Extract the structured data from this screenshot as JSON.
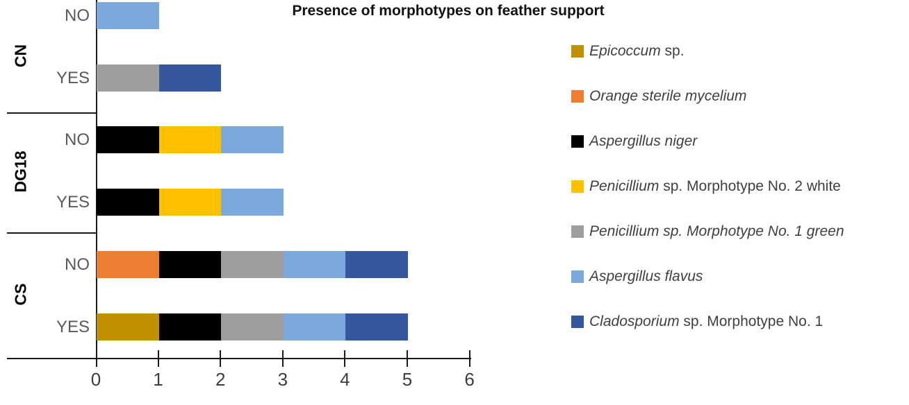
{
  "title": "Presence of morphotypes on feather support",
  "chart_data": {
    "type": "bar",
    "orientation": "horizontal",
    "stacked": true,
    "title": "Presence of morphotypes on feather support",
    "groups": [
      {
        "name": "CN",
        "rows": [
          "NO",
          "YES"
        ]
      },
      {
        "name": "DG18",
        "rows": [
          "NO",
          "YES"
        ]
      },
      {
        "name": "CS",
        "rows": [
          "NO",
          "YES"
        ]
      }
    ],
    "categories": [
      "CN NO",
      "CN YES",
      "DG18 NO",
      "DG18 YES",
      "CS NO",
      "CS YES"
    ],
    "series": [
      {
        "name": "Epicoccum sp.",
        "color": "#BF9000",
        "values": [
          0,
          0,
          0,
          0,
          0,
          1
        ]
      },
      {
        "name": "Orange sterile mycelium",
        "color": "#ED7D31",
        "values": [
          0,
          0,
          0,
          0,
          1,
          0
        ]
      },
      {
        "name": "Aspergillus niger",
        "color": "#000000",
        "values": [
          0,
          0,
          1,
          1,
          1,
          1
        ]
      },
      {
        "name": "Penicillium sp. Morphotype No. 2 white",
        "color": "#FFC000",
        "values": [
          0,
          0,
          1,
          1,
          0,
          0
        ]
      },
      {
        "name": "Penicillium sp. Morphotype No. 1 green",
        "color": "#9E9E9E",
        "values": [
          0,
          1,
          0,
          0,
          1,
          1
        ]
      },
      {
        "name": "Aspergillus flavus",
        "color": "#7CA9DC",
        "values": [
          1,
          0,
          1,
          1,
          1,
          1
        ]
      },
      {
        "name": "Cladosporium sp. Morphotype No. 1",
        "color": "#34579E",
        "values": [
          0,
          1,
          0,
          0,
          1,
          1
        ]
      }
    ],
    "xlim": [
      0,
      6
    ],
    "xticks": [
      "0",
      "1",
      "2",
      "3",
      "4",
      "5",
      "6"
    ],
    "grid": false,
    "legend_position": "right"
  },
  "legend": {
    "items": [
      {
        "color": "#BF9000",
        "italic": "Epicoccum",
        "rest": " sp."
      },
      {
        "color": "#ED7D31",
        "italic": "Orange sterile mycelium",
        "rest": ""
      },
      {
        "color": "#000000",
        "italic": "Aspergillus niger",
        "rest": ""
      },
      {
        "color": "#FFC000",
        "italic": "Penicillium",
        "rest": " sp. Morphotype No. 2 white"
      },
      {
        "color": "#9E9E9E",
        "italic": "Penicillium sp. Morphotype No. 1 green",
        "rest": ""
      },
      {
        "color": "#7CA9DC",
        "italic": "Aspergillus flavus",
        "rest": ""
      },
      {
        "color": "#34579E",
        "italic": "Cladosporium",
        "rest": " sp. Morphotype No. 1"
      }
    ]
  },
  "layout_colors": {
    "axis": "#1a1a1a",
    "tick_label": "#3d3d3d",
    "row_label": "#595959",
    "group_label": "#000000",
    "legend_text": "#3f3f3f"
  }
}
